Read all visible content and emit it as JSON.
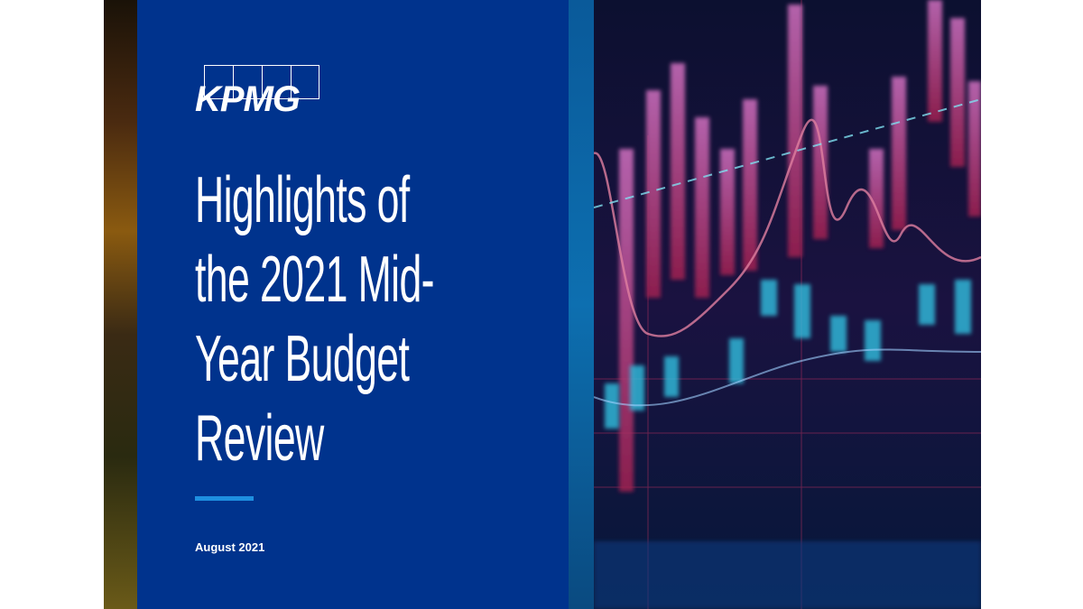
{
  "logo": {
    "text": "KPMG"
  },
  "title": {
    "lines": [
      "Highlights of",
      "the 2021 Mid-",
      "Year Budget",
      "Review"
    ]
  },
  "date": "August 2021"
}
